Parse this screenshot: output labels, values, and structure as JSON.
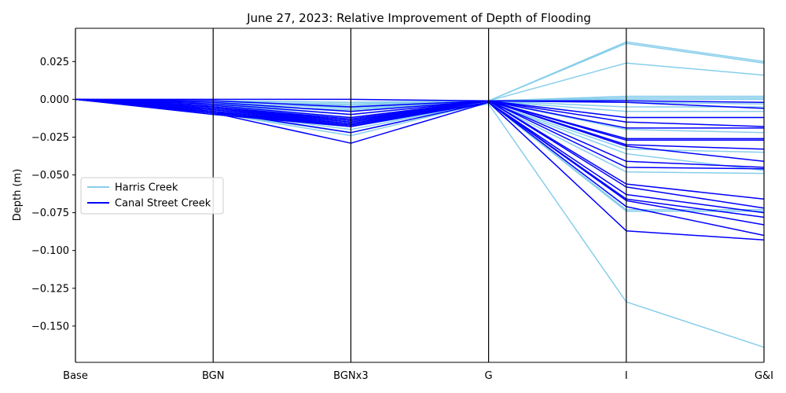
{
  "chart_data": {
    "type": "line",
    "title": "June 27, 2023: Relative Improvement of Depth of Flooding",
    "xlabel": "",
    "ylabel": "Depth (m)",
    "categories": [
      "Base",
      "BGN",
      "BGNx3",
      "G",
      "I",
      "G&I"
    ],
    "ylim": [
      -0.174,
      0.047
    ],
    "yticks": [
      "0.025",
      "0.000",
      "−0.025",
      "−0.050",
      "−0.075",
      "−0.100",
      "−0.125",
      "−0.150"
    ],
    "ytick_values": [
      0.025,
      0.0,
      -0.025,
      -0.05,
      -0.075,
      -0.1,
      -0.125,
      -0.15
    ],
    "legend": {
      "placement": "center-left",
      "entries": [
        "Harris Creek",
        "Canal Street Creek"
      ]
    },
    "grid": false,
    "series": [
      {
        "name": "Harris Creek",
        "color": "#87CEEB",
        "lines": [
          [
            0,
            -0.001,
            -0.004,
            -0.001,
            0.038,
            0.025
          ],
          [
            0,
            -0.002,
            -0.006,
            -0.001,
            0.037,
            0.024
          ],
          [
            0,
            -0.003,
            -0.008,
            -0.001,
            0.024,
            0.016
          ],
          [
            0,
            -0.001,
            -0.002,
            -0.001,
            0.002,
            0.002
          ],
          [
            0,
            -0.002,
            -0.003,
            -0.001,
            0.001,
            0.001
          ],
          [
            0,
            -0.001,
            -0.002,
            -0.001,
            0.0,
            0.0
          ],
          [
            0,
            -0.003,
            -0.005,
            -0.001,
            -0.002,
            -0.003
          ],
          [
            0,
            -0.004,
            -0.007,
            -0.001,
            -0.005,
            -0.005
          ],
          [
            0,
            -0.004,
            -0.01,
            -0.001,
            -0.008,
            -0.008
          ],
          [
            0,
            -0.005,
            -0.012,
            -0.001,
            -0.012,
            -0.012
          ],
          [
            0,
            -0.006,
            -0.014,
            -0.001,
            -0.02,
            -0.022
          ],
          [
            0,
            -0.007,
            -0.016,
            -0.002,
            -0.033,
            -0.035
          ],
          [
            0,
            -0.007,
            -0.018,
            -0.002,
            -0.036,
            -0.047
          ],
          [
            0,
            -0.008,
            -0.02,
            -0.002,
            -0.048,
            -0.049
          ],
          [
            0,
            -0.009,
            -0.022,
            -0.002,
            -0.073,
            -0.073
          ],
          [
            0,
            -0.009,
            -0.024,
            -0.002,
            -0.074,
            -0.074
          ],
          [
            0,
            -0.01,
            -0.018,
            -0.003,
            -0.134,
            -0.164
          ]
        ]
      },
      {
        "name": "Canal Street Creek",
        "color": "#0000FF",
        "lines": [
          [
            0,
            0.0,
            0.0,
            -0.001,
            -0.001,
            -0.002
          ],
          [
            0,
            -0.001,
            -0.005,
            -0.001,
            -0.002,
            -0.006
          ],
          [
            0,
            -0.002,
            -0.008,
            -0.001,
            -0.012,
            -0.012
          ],
          [
            0,
            -0.003,
            -0.01,
            -0.001,
            -0.015,
            -0.018
          ],
          [
            0,
            -0.004,
            -0.012,
            -0.001,
            -0.019,
            -0.019
          ],
          [
            0,
            -0.005,
            -0.013,
            -0.001,
            -0.026,
            -0.026
          ],
          [
            0,
            -0.005,
            -0.014,
            -0.001,
            -0.027,
            -0.027
          ],
          [
            0,
            -0.006,
            -0.014,
            -0.001,
            -0.03,
            -0.033
          ],
          [
            0,
            -0.006,
            -0.015,
            -0.001,
            -0.031,
            -0.041
          ],
          [
            0,
            -0.007,
            -0.015,
            -0.001,
            -0.041,
            -0.045
          ],
          [
            0,
            -0.007,
            -0.016,
            -0.001,
            -0.045,
            -0.046
          ],
          [
            0,
            -0.008,
            -0.016,
            -0.001,
            -0.056,
            -0.066
          ],
          [
            0,
            -0.008,
            -0.017,
            -0.001,
            -0.058,
            -0.072
          ],
          [
            0,
            -0.009,
            -0.017,
            -0.002,
            -0.063,
            -0.075
          ],
          [
            0,
            -0.009,
            -0.018,
            -0.002,
            -0.066,
            -0.078
          ],
          [
            0,
            -0.008,
            -0.022,
            -0.002,
            -0.067,
            -0.083
          ],
          [
            0,
            -0.009,
            -0.029,
            -0.002,
            -0.071,
            -0.09
          ],
          [
            0,
            -0.01,
            -0.018,
            -0.002,
            -0.087,
            -0.093
          ]
        ]
      }
    ]
  }
}
